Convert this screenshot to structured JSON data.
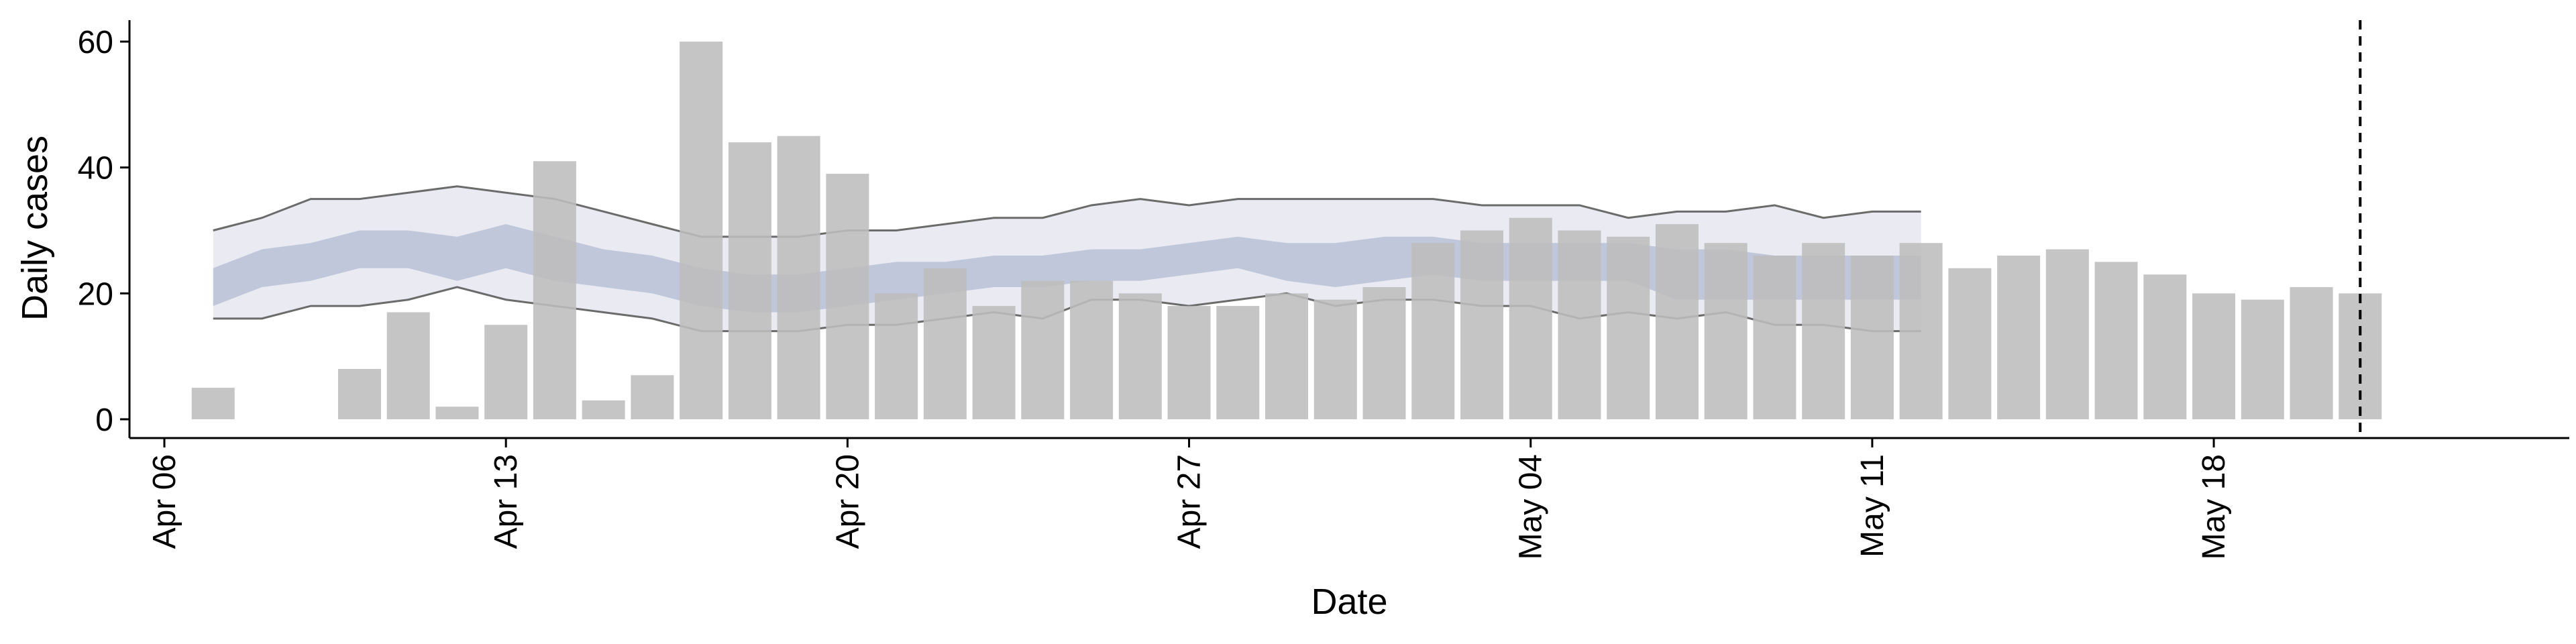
{
  "chart_data": {
    "type": "bar",
    "title": "",
    "xlabel": "Date",
    "ylabel": "Daily cases",
    "ylim": [
      0,
      63
    ],
    "x_ticks": [
      "Apr 06",
      "Apr 13",
      "Apr 20",
      "Apr 27",
      "May 04",
      "May 11",
      "May 18"
    ],
    "y_ticks": [
      "0",
      "20",
      "40",
      "60"
    ],
    "xlim": [
      "2020-04-06",
      "2020-05-26"
    ],
    "legend": "none",
    "grid": false,
    "reference_line": {
      "date": "2020-05-22",
      "style": "dashed"
    },
    "bars": {
      "start_date": "2020-04-08",
      "color": "#bdbdbd",
      "values": [
        5,
        0,
        0,
        8,
        17,
        2,
        15,
        41,
        3,
        7,
        60,
        44,
        45,
        39,
        20,
        24,
        18,
        22,
        22,
        20,
        18,
        18,
        20,
        19,
        21,
        28,
        30,
        32,
        30,
        29,
        31,
        28,
        26,
        28,
        26,
        28,
        24,
        26,
        27,
        25,
        23,
        20,
        19,
        21,
        20
      ]
    },
    "model_band": {
      "start_date": "2020-04-08",
      "color_outer": "#dfe1ec",
      "color_inner": "#9ea9c8",
      "line_color": "#6b6b6b",
      "upper_90": [
        30,
        32,
        35,
        35,
        36,
        37,
        36,
        35,
        33,
        31,
        29,
        29,
        29,
        30,
        30,
        31,
        32,
        32,
        34,
        35,
        34,
        35,
        35,
        35,
        35,
        35,
        34,
        34,
        34,
        32,
        33,
        33,
        34,
        32,
        33,
        33
      ],
      "lower_90": [
        16,
        16,
        18,
        18,
        19,
        21,
        19,
        18,
        17,
        16,
        14,
        14,
        14,
        15,
        15,
        16,
        17,
        16,
        19,
        19,
        18,
        19,
        20,
        18,
        19,
        19,
        18,
        18,
        16,
        17,
        16,
        17,
        15,
        15,
        14,
        14
      ],
      "upper_50": [
        24,
        27,
        28,
        30,
        30,
        29,
        31,
        29,
        27,
        26,
        24,
        23,
        23,
        24,
        25,
        25,
        26,
        26,
        27,
        27,
        28,
        29,
        28,
        28,
        29,
        29,
        28,
        28,
        28,
        28,
        27,
        27,
        26,
        26,
        26,
        26
      ],
      "lower_50": [
        18,
        21,
        22,
        24,
        24,
        22,
        24,
        22,
        21,
        20,
        18,
        17,
        17,
        18,
        19,
        20,
        21,
        21,
        22,
        22,
        23,
        24,
        22,
        21,
        22,
        23,
        22,
        22,
        22,
        22,
        19,
        19,
        19,
        19,
        19,
        19
      ]
    }
  }
}
